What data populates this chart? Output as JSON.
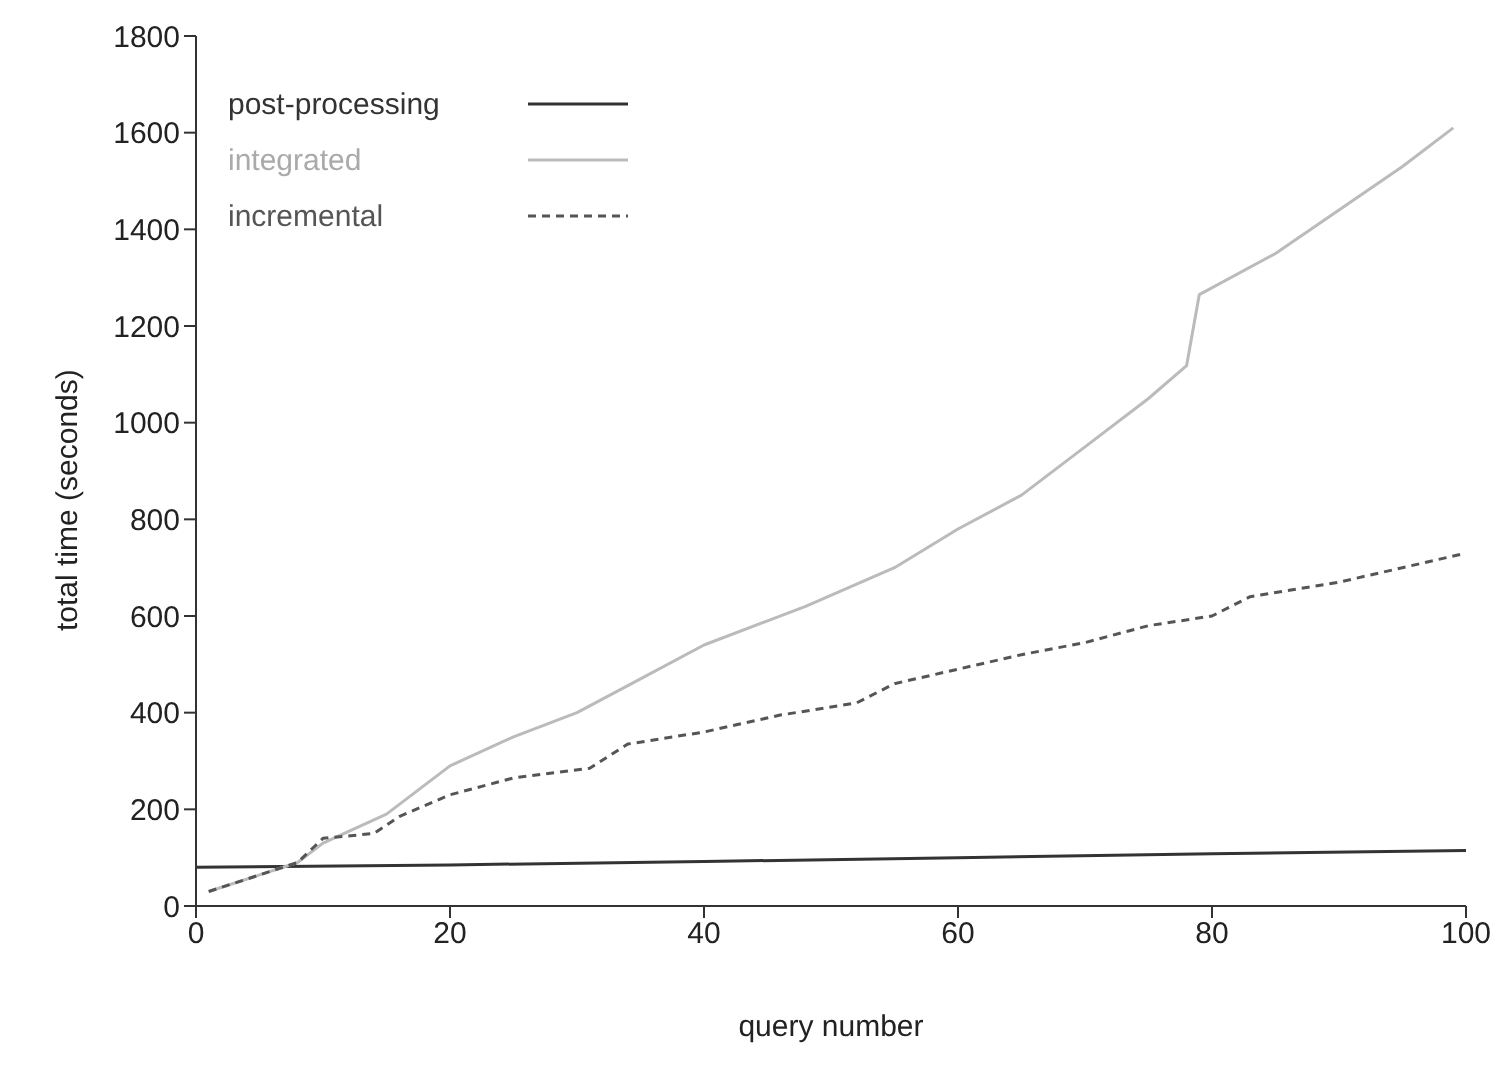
{
  "chart_data": {
    "type": "line",
    "xlabel": "query number",
    "ylabel": "total time (seconds)",
    "xlim": [
      0,
      100
    ],
    "xticks": [
      0,
      20,
      40,
      60,
      80,
      100
    ],
    "ylim": [
      0,
      1800
    ],
    "yticks": [
      0,
      200,
      400,
      600,
      800,
      1000,
      1200,
      1400,
      1600,
      1800
    ],
    "legend": "top left",
    "marker": "none",
    "series": [
      {
        "name": "post-processing",
        "color": "#333333",
        "line_style": "solid",
        "x": [
          0,
          20,
          40,
          60,
          80,
          100
        ],
        "values": [
          80,
          85,
          92,
          100,
          108,
          115
        ]
      },
      {
        "name": "integrated",
        "color": "#bbbbbb",
        "line_style": "solid",
        "x": [
          1,
          8,
          10,
          15,
          20,
          25,
          30,
          35,
          40,
          45,
          48,
          55,
          60,
          65,
          70,
          75,
          78,
          79,
          85,
          90,
          95,
          99
        ],
        "values": [
          30,
          90,
          130,
          190,
          290,
          350,
          400,
          470,
          540,
          590,
          620,
          700,
          780,
          850,
          950,
          1050,
          1118,
          1265,
          1350,
          1440,
          1530,
          1610
        ]
      },
      {
        "name": "incremental",
        "color": "#555555",
        "line_style": "dashed",
        "x": [
          1,
          8,
          10,
          14,
          16,
          20,
          25,
          31,
          34,
          40,
          46,
          52,
          55,
          60,
          65,
          70,
          75,
          80,
          83,
          90,
          100
        ],
        "values": [
          30,
          90,
          140,
          150,
          185,
          230,
          265,
          285,
          335,
          360,
          395,
          420,
          460,
          490,
          520,
          545,
          580,
          600,
          640,
          670,
          730
        ]
      }
    ]
  }
}
